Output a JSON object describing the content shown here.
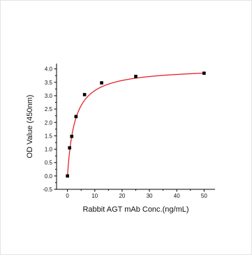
{
  "chart_data": {
    "type": "scatter",
    "title": "",
    "xlabel": "Rabbit AGT mAb Conc.(ng/mL)",
    "ylabel": "OD Value (450nm)",
    "xlim": [
      -4,
      54
    ],
    "ylim": [
      -0.5,
      4.2
    ],
    "x_ticks": [
      0,
      10,
      20,
      30,
      40,
      50
    ],
    "y_ticks": [
      -0.5,
      0.0,
      0.5,
      1.0,
      1.5,
      2.0,
      2.5,
      3.0,
      3.5,
      4.0
    ],
    "x_tick_labels": [
      "0",
      "10",
      "20",
      "30",
      "40",
      "50"
    ],
    "y_tick_labels": [
      "-0.5",
      "0.0",
      "0.5",
      "1.0",
      "1.5",
      "2.0",
      "2.5",
      "3.0",
      "3.5",
      "4.0"
    ],
    "grid": false,
    "legend": "none",
    "series": [
      {
        "kind": "points",
        "x": [
          0,
          0.78,
          1.56,
          3.125,
          6.25,
          12.5,
          25,
          50
        ],
        "y": [
          0.0,
          1.05,
          1.48,
          2.22,
          3.04,
          3.48,
          3.72,
          3.84
        ],
        "color": "#000000",
        "marker": "square"
      },
      {
        "kind": "fitted-curve",
        "model": "four-parameter logistic",
        "params": {
          "bottom": 0.0,
          "top": 4.05,
          "ec50": 2.7,
          "hill": 1.0
        },
        "color": "#e2232a"
      }
    ]
  }
}
